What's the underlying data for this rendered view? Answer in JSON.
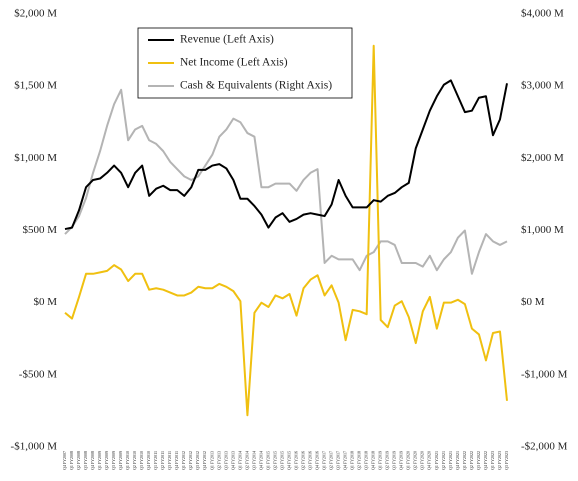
{
  "chart_data": {
    "type": "line",
    "categories": [
      "Q4 FY2007",
      "Q1 FY2008",
      "Q2 FY2008",
      "Q3 FY2008",
      "Q4 FY2008",
      "Q1 FY2009",
      "Q2 FY2009",
      "Q3 FY2009",
      "Q4 FY2009",
      "Q1 FY2010",
      "Q2 FY2010",
      "Q3 FY2010",
      "Q4 FY2010",
      "Q1 FY2011",
      "Q2 FY2011",
      "Q3 FY2011",
      "Q4 FY2011",
      "Q1 FY2012",
      "Q2 FY2012",
      "Q3 FY2012",
      "Q4 FY2012",
      "Q1 FY2013",
      "Q2 FY2013",
      "Q3 FY2013",
      "Q4 FY2013",
      "Q1 FY2014",
      "Q2 FY2014",
      "Q3 FY2014",
      "Q4 FY2014",
      "Q1 FY2015",
      "Q2 FY2015",
      "Q3 FY2015",
      "Q4 FY2015",
      "Q1 FY2016",
      "Q2 FY2016",
      "Q3 FY2016",
      "Q4 FY2016",
      "Q1 FY2017",
      "Q2 FY2017",
      "Q3 FY2017",
      "Q4 FY2017",
      "Q1 FY2018",
      "Q2 FY2018",
      "Q3 FY2018",
      "Q4 FY2018",
      "Q1 FY2019",
      "Q2 FY2019",
      "Q3 FY2019",
      "Q4 FY2019",
      "Q1 FY2020",
      "Q2 FY2020",
      "Q3 FY2020",
      "Q4 FY2020",
      "Q1 FY2021",
      "Q2 FY2021",
      "Q3 FY2021",
      "Q4 FY2021",
      "Q1 FY2022",
      "Q2 FY2022",
      "Q3 FY2022",
      "Q4 FY2022",
      "Q1 FY2023",
      "Q2 FY2023",
      "Q3 FY2023"
    ],
    "series": [
      {
        "name": "Revenue (Left Axis)",
        "color": "#000000",
        "axis": "y",
        "values": [
          510,
          520,
          640,
          800,
          850,
          860,
          900,
          950,
          900,
          800,
          900,
          950,
          740,
          790,
          810,
          780,
          780,
          740,
          800,
          920,
          920,
          950,
          960,
          930,
          850,
          720,
          720,
          670,
          610,
          520,
          590,
          620,
          560,
          580,
          610,
          620,
          610,
          600,
          680,
          850,
          740,
          660,
          660,
          660,
          710,
          700,
          740,
          760,
          800,
          830,
          1070,
          1200,
          1330,
          1430,
          1510,
          1540,
          1430,
          1320,
          1330,
          1420,
          1430,
          1160,
          1270,
          1520
        ]
      },
      {
        "name": "Net Income (Left Axis)",
        "color": "#f0c010",
        "axis": "y",
        "values": [
          -70,
          -110,
          40,
          200,
          200,
          210,
          220,
          260,
          230,
          150,
          200,
          200,
          90,
          100,
          90,
          70,
          50,
          50,
          70,
          110,
          100,
          100,
          130,
          110,
          80,
          10,
          -780,
          -70,
          0,
          -30,
          50,
          30,
          60,
          -90,
          100,
          160,
          190,
          50,
          120,
          0,
          -260,
          -50,
          -60,
          -80,
          1780,
          -120,
          -170,
          -20,
          10,
          -100,
          -280,
          -60,
          40,
          -180,
          0,
          0,
          20,
          -10,
          -180,
          -220,
          -400,
          -210,
          -200,
          -680
        ]
      },
      {
        "name": "Cash & Equivalents (Right Axis)",
        "color": "#b4b4b4",
        "axis": "y2",
        "values": [
          950,
          1050,
          1200,
          1450,
          1800,
          2100,
          2450,
          2750,
          2950,
          2250,
          2400,
          2450,
          2250,
          2200,
          2100,
          1950,
          1850,
          1750,
          1700,
          1750,
          1900,
          2050,
          2300,
          2400,
          2550,
          2500,
          2350,
          2300,
          1600,
          1600,
          1650,
          1650,
          1650,
          1550,
          1700,
          1800,
          1850,
          550,
          650,
          600,
          600,
          600,
          450,
          650,
          700,
          850,
          850,
          800,
          550,
          550,
          550,
          500,
          650,
          450,
          600,
          700,
          900,
          1000,
          400,
          700,
          950,
          850,
          800,
          850
        ]
      }
    ],
    "ylim": [
      -1000,
      2000
    ],
    "yticks": [
      {
        "value": -1000,
        "label": "-$1,000 M"
      },
      {
        "value": -500,
        "label": "-$500 M"
      },
      {
        "value": 0,
        "label": "$0 M"
      },
      {
        "value": 500,
        "label": "$500 M"
      },
      {
        "value": 1000,
        "label": "$1,000 M"
      },
      {
        "value": 1500,
        "label": "$1,500 M"
      },
      {
        "value": 2000,
        "label": "$2,000 M"
      }
    ],
    "y2lim": [
      -2000,
      4000
    ],
    "y2ticks": [
      {
        "value": -2000,
        "label": "-$2,000 M"
      },
      {
        "value": -1000,
        "label": "-$1,000 M"
      },
      {
        "value": 0,
        "label": "$0 M"
      },
      {
        "value": 1000,
        "label": "$1,000 M"
      },
      {
        "value": 2000,
        "label": "$2,000 M"
      },
      {
        "value": 3000,
        "label": "$3,000 M"
      },
      {
        "value": 4000,
        "label": "$4,000 M"
      }
    ],
    "legend": "upper-left"
  }
}
